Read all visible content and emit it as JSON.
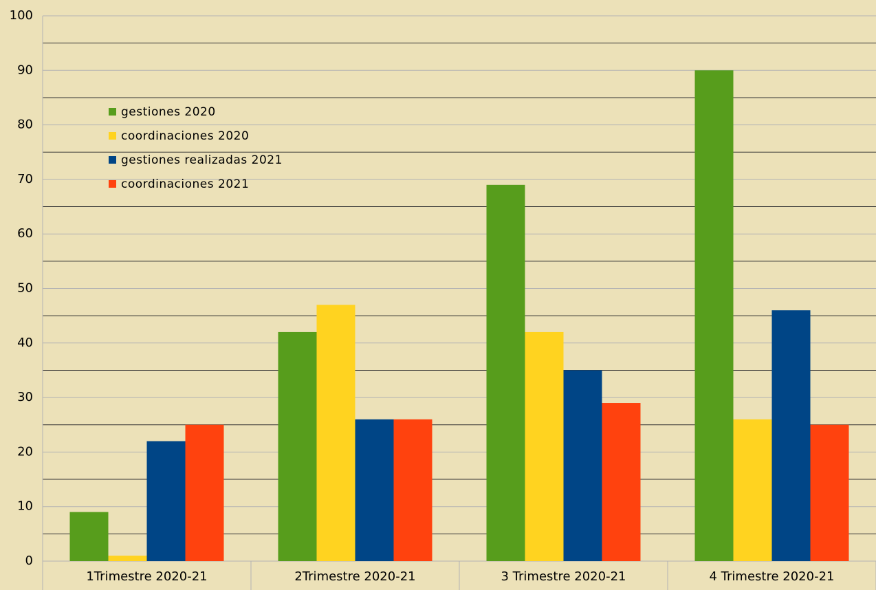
{
  "chart_data": {
    "type": "bar",
    "categories": [
      "1Trimestre 2020-21",
      "2Trimestre 2020-21",
      "3 Trimestre 2020-21",
      "4 Trimestre 2020-21"
    ],
    "series": [
      {
        "name": "gestiones 2020",
        "color": "#579d1c",
        "values": [
          9,
          42,
          69,
          90
        ]
      },
      {
        "name": "coordinaciones 2020",
        "color": "#ffd320",
        "values": [
          1,
          47,
          42,
          26
        ]
      },
      {
        "name": "gestiones realizadas 2021",
        "color": "#004586",
        "values": [
          22,
          26,
          35,
          46
        ]
      },
      {
        "name": "coordinaciones 2021",
        "color": "#ff420e",
        "values": [
          25,
          26,
          29,
          25
        ]
      }
    ],
    "ylim": [
      0,
      100
    ],
    "yticks": [
      0,
      10,
      20,
      30,
      40,
      50,
      60,
      70,
      80,
      90,
      100
    ],
    "yticks_minor": [
      5,
      15,
      25,
      35,
      45,
      55,
      65,
      75,
      85,
      95
    ],
    "grid": true,
    "legend": "upper left"
  }
}
